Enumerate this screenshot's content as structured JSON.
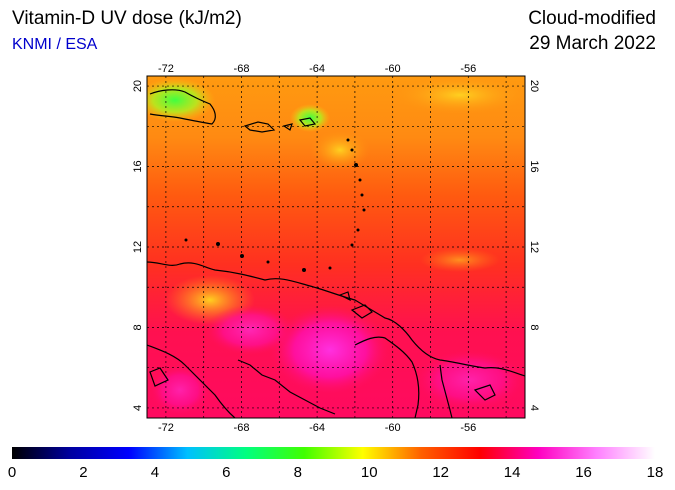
{
  "header": {
    "title": "Vitamin-D UV dose (kJ/m2)",
    "source": "KNMI / ESA",
    "mode": "Cloud-modified",
    "date": "29 March 2022"
  },
  "map": {
    "lon_range": [
      -73,
      -53
    ],
    "lat_range": [
      3.5,
      20.5
    ],
    "lon_ticks": [
      "-72",
      "-68",
      "-64",
      "-60",
      "-56"
    ],
    "lat_ticks": [
      "20",
      "16",
      "12",
      "8",
      "4"
    ],
    "lon_values": [
      -72,
      -68,
      -64,
      -60,
      -56
    ],
    "lat_values": [
      20,
      16,
      12,
      8,
      4
    ]
  },
  "colorbar": {
    "labels": [
      "0",
      "2",
      "4",
      "6",
      "8",
      "10",
      "12",
      "14",
      "16",
      "18"
    ],
    "values": [
      0,
      2,
      4,
      6,
      8,
      10,
      12,
      14,
      16,
      18
    ],
    "colors": [
      "#000000",
      "#0000a0",
      "#0000ff",
      "#00c0ff",
      "#00ff80",
      "#40ff00",
      "#ffff00",
      "#ff6000",
      "#ff0000",
      "#ff00c0",
      "#ff80ff",
      "#ffffff"
    ]
  }
}
